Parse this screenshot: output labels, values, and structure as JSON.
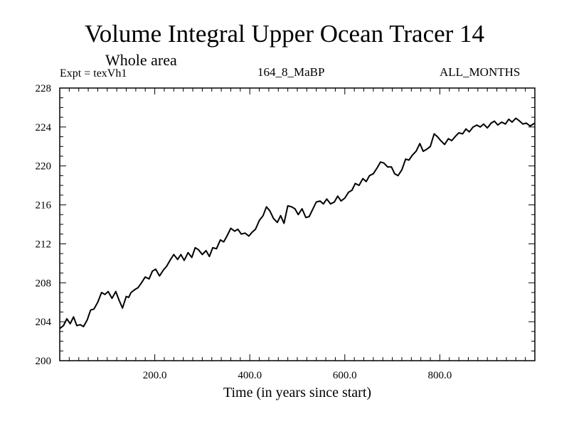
{
  "header": {
    "title": "Volume Integral Upper Ocean Tracer 14",
    "subtitle": "Whole area",
    "experiment": "Expt = texVh1",
    "run_name": "164_8_MaBP",
    "months": "ALL_MONTHS"
  },
  "chart_data": {
    "type": "line",
    "title": "Volume Integral Upper Ocean Tracer 14",
    "subtitle": "Whole area",
    "xlabel": "Time (in years since start)",
    "ylabel": "",
    "xlim": [
      0,
      1000
    ],
    "ylim": [
      200,
      228
    ],
    "x_ticks": [
      200,
      400,
      600,
      800
    ],
    "x_tick_labels": [
      "200.0",
      "400.0",
      "600.0",
      "800.0"
    ],
    "y_ticks": [
      200,
      204,
      208,
      212,
      216,
      220,
      224,
      228
    ],
    "y_tick_labels": [
      "200",
      "204",
      "208",
      "212",
      "216",
      "220",
      "224",
      "228"
    ],
    "grid": false,
    "legend": "none",
    "series": [
      {
        "name": "Volume Integral Upper Ocean Tracer 14",
        "color": "#000000",
        "x": [
          0,
          8,
          15,
          22,
          29,
          36,
          43,
          50,
          58,
          65,
          72,
          80,
          88,
          95,
          102,
          110,
          118,
          125,
          132,
          140,
          145,
          150,
          158,
          165,
          172,
          180,
          188,
          195,
          202,
          210,
          218,
          225,
          232,
          240,
          248,
          255,
          262,
          270,
          278,
          285,
          292,
          300,
          308,
          315,
          322,
          330,
          338,
          345,
          352,
          360,
          368,
          375,
          382,
          390,
          398,
          405,
          412,
          420,
          428,
          435,
          442,
          450,
          458,
          465,
          472,
          480,
          488,
          495,
          502,
          510,
          518,
          525,
          532,
          540,
          548,
          555,
          562,
          570,
          578,
          585,
          592,
          600,
          608,
          615,
          622,
          630,
          638,
          645,
          652,
          660,
          668,
          675,
          682,
          690,
          698,
          705,
          712,
          720,
          728,
          735,
          742,
          750,
          758,
          765,
          772,
          780,
          788,
          795,
          802,
          810,
          818,
          825,
          832,
          840,
          848,
          855,
          862,
          870,
          878,
          885,
          892,
          900,
          908,
          915,
          922,
          930,
          938,
          945,
          952,
          960,
          968,
          975,
          982,
          990,
          1000
        ],
        "values": [
          203.3,
          203.6,
          204.3,
          203.8,
          204.5,
          203.6,
          203.7,
          203.5,
          204.2,
          205.2,
          205.3,
          206.0,
          207.0,
          206.8,
          207.1,
          206.4,
          207.1,
          206.2,
          205.4,
          206.6,
          206.5,
          207.0,
          207.3,
          207.5,
          208.0,
          208.6,
          208.4,
          209.2,
          209.4,
          208.7,
          209.3,
          209.7,
          210.3,
          210.9,
          210.4,
          210.9,
          210.3,
          211.1,
          210.6,
          211.6,
          211.4,
          210.9,
          211.3,
          210.7,
          211.6,
          211.5,
          212.4,
          212.2,
          212.8,
          213.6,
          213.3,
          213.5,
          213.0,
          213.1,
          212.8,
          213.2,
          213.5,
          214.4,
          214.9,
          215.8,
          215.4,
          214.6,
          214.2,
          214.9,
          214.1,
          215.9,
          215.8,
          215.6,
          215.0,
          215.6,
          214.7,
          214.8,
          215.5,
          216.3,
          216.4,
          216.1,
          216.6,
          216.1,
          216.3,
          216.9,
          216.4,
          216.7,
          217.3,
          217.5,
          218.2,
          218.0,
          218.7,
          218.4,
          219.0,
          219.2,
          219.8,
          220.4,
          220.3,
          219.9,
          219.9,
          219.2,
          219.0,
          219.6,
          220.7,
          220.6,
          221.1,
          221.5,
          222.3,
          221.5,
          221.7,
          222.0,
          223.3,
          223.0,
          222.6,
          222.2,
          222.8,
          222.6,
          223.0,
          223.4,
          223.3,
          223.8,
          223.5,
          224.0,
          224.2,
          224.0,
          224.3,
          223.9,
          224.4,
          224.6,
          224.2,
          224.5,
          224.3,
          224.8,
          224.5,
          224.9,
          224.6,
          224.3,
          224.4,
          224.1,
          224.4
        ]
      }
    ]
  }
}
